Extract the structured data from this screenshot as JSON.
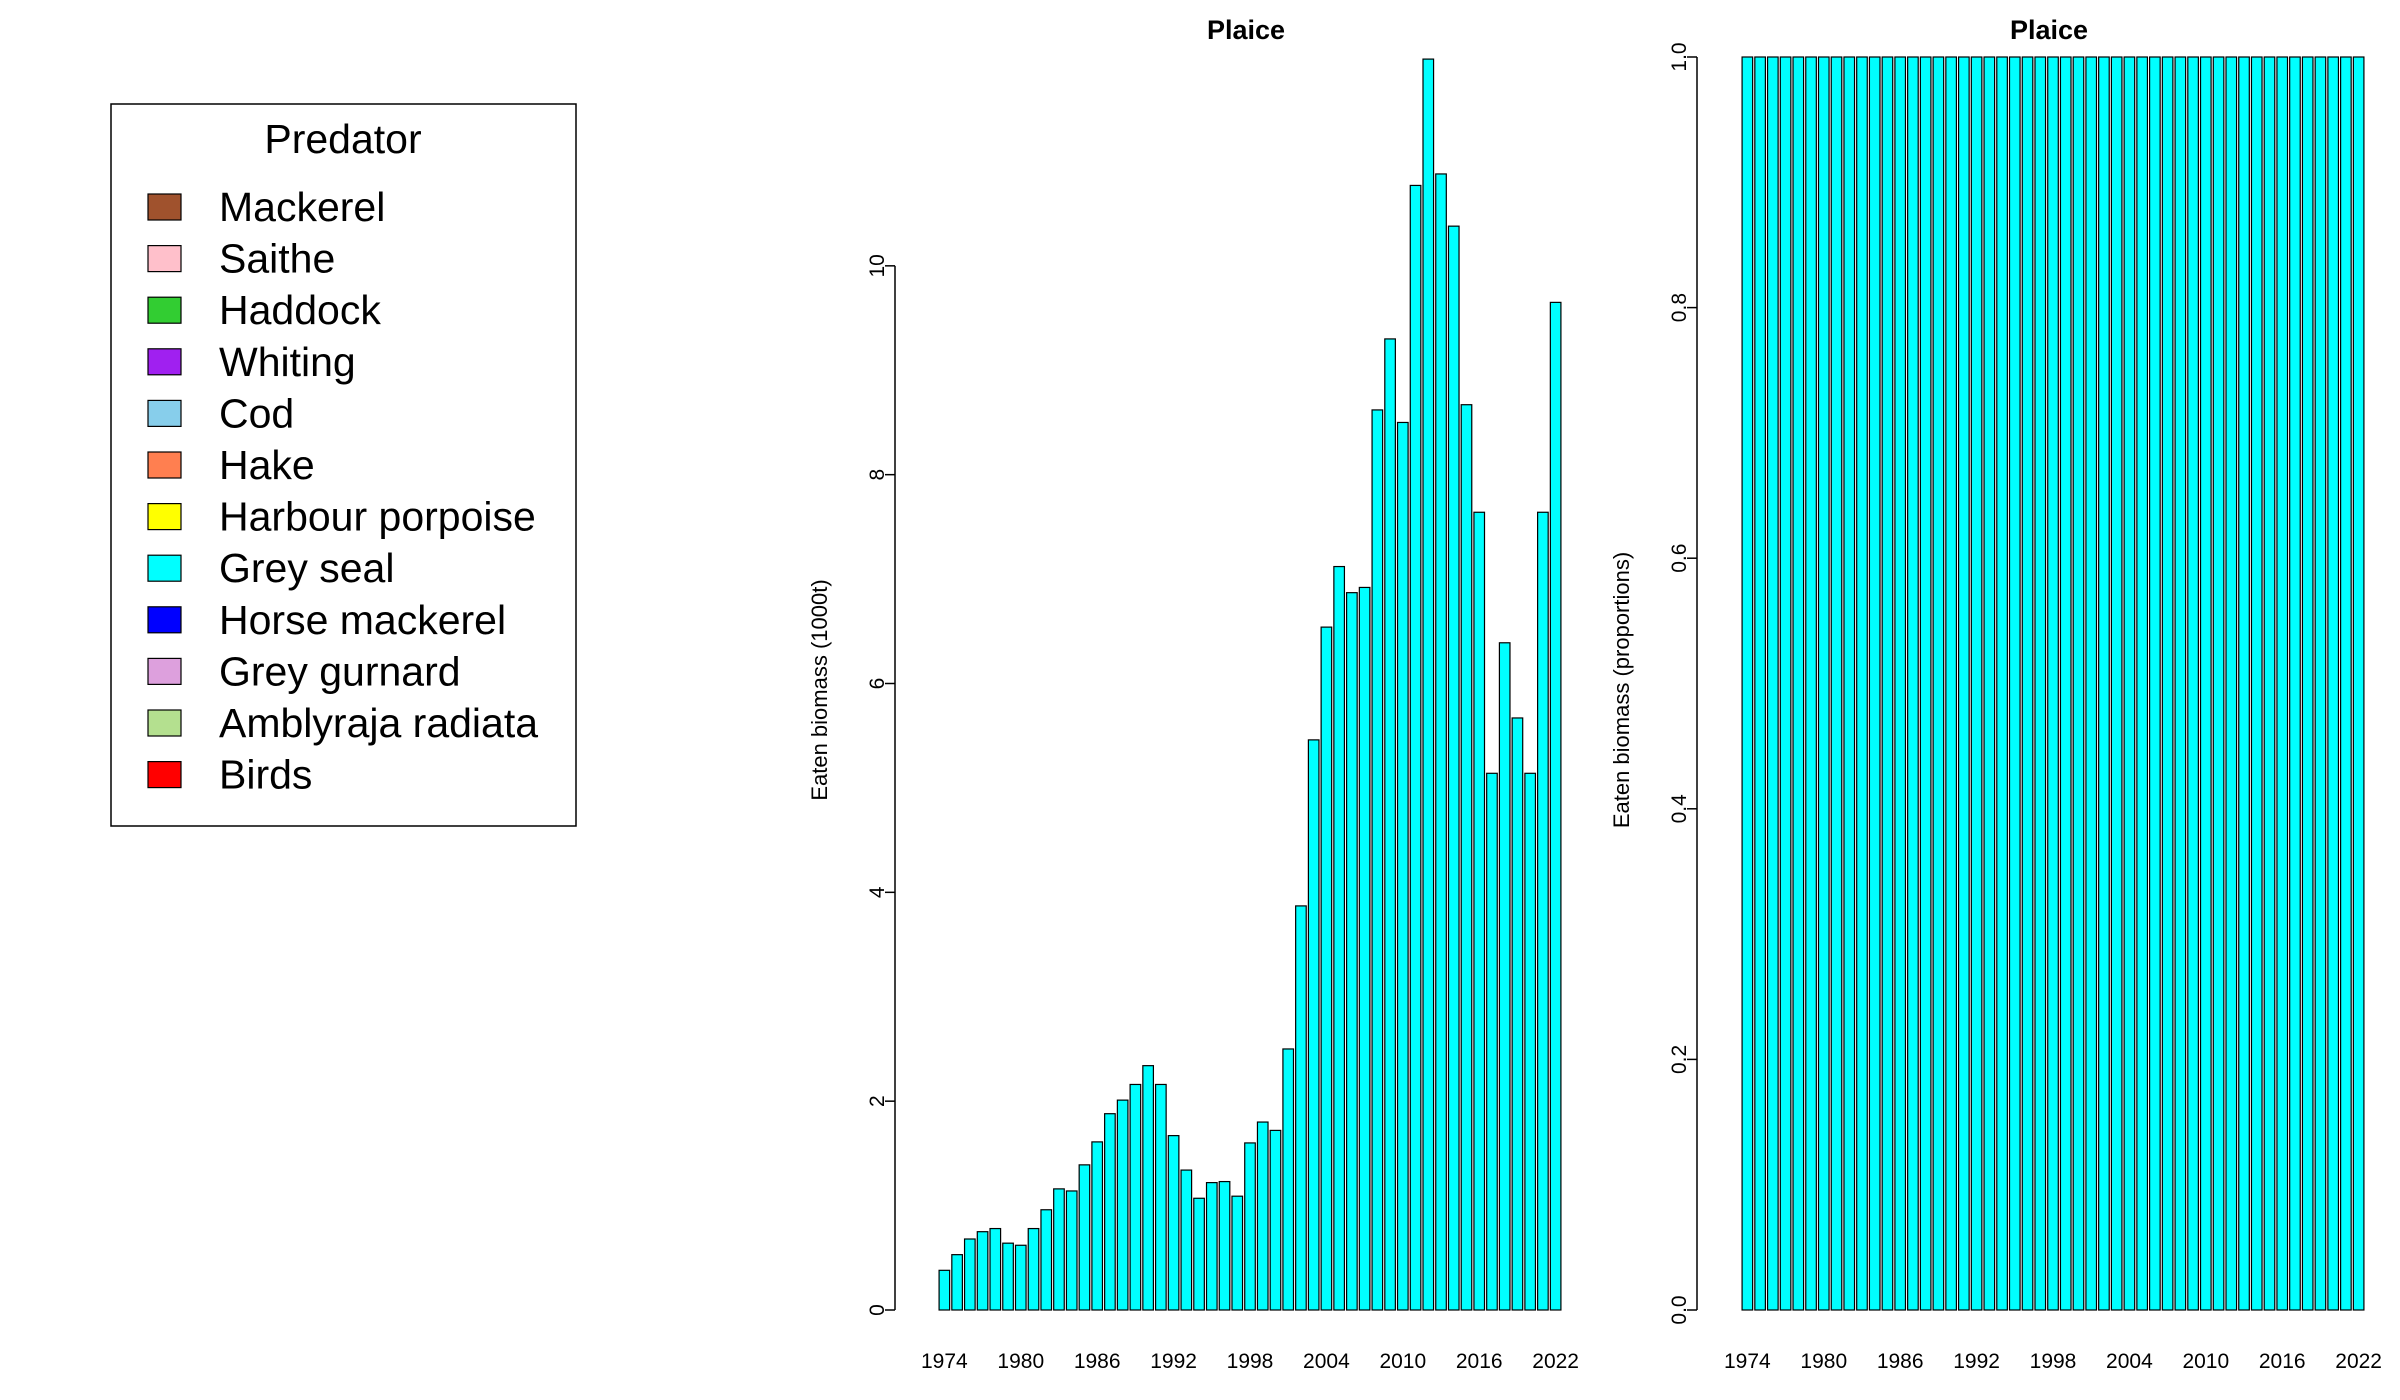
{
  "legend": {
    "title": "Predator",
    "items": [
      {
        "label": "Mackerel",
        "color": "#A0522D"
      },
      {
        "label": "Saithe",
        "color": "#FFC0CB"
      },
      {
        "label": "Haddock",
        "color": "#32CD32"
      },
      {
        "label": "Whiting",
        "color": "#A020F0"
      },
      {
        "label": "Cod",
        "color": "#87CEEB"
      },
      {
        "label": "Hake",
        "color": "#FF7F50"
      },
      {
        "label": "Harbour porpoise",
        "color": "#FFFF00"
      },
      {
        "label": "Grey seal",
        "color": "#00FFFF"
      },
      {
        "label": "Horse mackerel",
        "color": "#0000FF"
      },
      {
        "label": "Grey gurnard",
        "color": "#DDA0DD"
      },
      {
        "label": "Amblyraja radiata",
        "color": "#B4E08F"
      },
      {
        "label": "Birds",
        "color": "#FF0000"
      }
    ]
  },
  "chart_data": [
    {
      "type": "bar",
      "title": "Plaice",
      "xlabel": "",
      "ylabel": "Eaten biomass (1000t)",
      "ylim": [
        0,
        12
      ],
      "yticks": [
        "0",
        "2",
        "4",
        "6",
        "8",
        "10"
      ],
      "xticks": [
        "1974",
        "1980",
        "1986",
        "1992",
        "1998",
        "2004",
        "2010",
        "2016",
        "2022"
      ],
      "series": [
        {
          "name": "Grey seal",
          "color": "#00FFFF",
          "x": [
            1974,
            1975,
            1976,
            1977,
            1978,
            1979,
            1980,
            1981,
            1982,
            1983,
            1984,
            1985,
            1986,
            1987,
            1988,
            1989,
            1990,
            1991,
            1992,
            1993,
            1994,
            1995,
            1996,
            1997,
            1998,
            1999,
            2000,
            2001,
            2002,
            2003,
            2004,
            2005,
            2006,
            2007,
            2008,
            2009,
            2010,
            2011,
            2012,
            2013,
            2014,
            2015,
            2016,
            2017,
            2018,
            2019,
            2020,
            2021,
            2022
          ],
          "values": [
            0.38,
            0.53,
            0.68,
            0.75,
            0.78,
            0.64,
            0.62,
            0.78,
            0.96,
            1.16,
            1.14,
            1.39,
            1.61,
            1.88,
            2.01,
            2.16,
            2.34,
            2.16,
            1.67,
            1.34,
            1.07,
            1.22,
            1.23,
            1.09,
            1.6,
            1.8,
            1.72,
            2.5,
            3.87,
            5.46,
            6.54,
            7.12,
            6.87,
            6.92,
            8.62,
            9.3,
            8.5,
            10.77,
            11.98,
            10.88,
            10.38,
            8.67,
            7.64,
            5.14,
            6.39,
            5.67,
            5.14,
            7.64,
            9.65
          ]
        }
      ]
    },
    {
      "type": "bar",
      "title": "Plaice",
      "xlabel": "",
      "ylabel": "Eaten biomass (proportions)",
      "ylim": [
        0,
        1
      ],
      "yticks": [
        "0.0",
        "0.2",
        "0.4",
        "0.6",
        "0.8",
        "1.0"
      ],
      "xticks": [
        "1974",
        "1980",
        "1986",
        "1992",
        "1998",
        "2004",
        "2010",
        "2016",
        "2022"
      ],
      "series": [
        {
          "name": "Grey seal",
          "color": "#00FFFF",
          "x": [
            1974,
            1975,
            1976,
            1977,
            1978,
            1979,
            1980,
            1981,
            1982,
            1983,
            1984,
            1985,
            1986,
            1987,
            1988,
            1989,
            1990,
            1991,
            1992,
            1993,
            1994,
            1995,
            1996,
            1997,
            1998,
            1999,
            2000,
            2001,
            2002,
            2003,
            2004,
            2005,
            2006,
            2007,
            2008,
            2009,
            2010,
            2011,
            2012,
            2013,
            2014,
            2015,
            2016,
            2017,
            2018,
            2019,
            2020,
            2021,
            2022
          ],
          "values": [
            1,
            1,
            1,
            1,
            1,
            1,
            1,
            1,
            1,
            1,
            1,
            1,
            1,
            1,
            1,
            1,
            1,
            1,
            1,
            1,
            1,
            1,
            1,
            1,
            1,
            1,
            1,
            1,
            1,
            1,
            1,
            1,
            1,
            1,
            1,
            1,
            1,
            1,
            1,
            1,
            1,
            1,
            1,
            1,
            1,
            1,
            1,
            1,
            1
          ]
        }
      ]
    }
  ]
}
